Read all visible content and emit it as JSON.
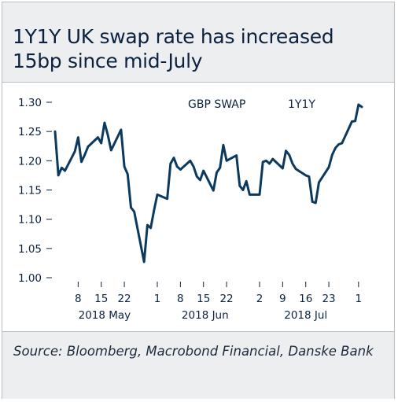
{
  "chart_data": {
    "type": "line",
    "title": "1Y1Y UK swap rate has increased 15bp since mid-July",
    "series": [
      {
        "name": "GBP SWAP",
        "name2": "1Y1Y",
        "color": "#0b3a5e",
        "x": [
          "2018-05-01",
          "2018-05-02",
          "2018-05-03",
          "2018-05-04",
          "2018-05-07",
          "2018-05-08",
          "2018-05-09",
          "2018-05-10",
          "2018-05-11",
          "2018-05-14",
          "2018-05-15",
          "2018-05-16",
          "2018-05-17",
          "2018-05-18",
          "2018-05-21",
          "2018-05-22",
          "2018-05-23",
          "2018-05-24",
          "2018-05-25",
          "2018-05-28",
          "2018-05-29",
          "2018-05-30",
          "2018-05-31",
          "2018-06-01",
          "2018-06-04",
          "2018-06-05",
          "2018-06-06",
          "2018-06-07",
          "2018-06-08",
          "2018-06-11",
          "2018-06-12",
          "2018-06-13",
          "2018-06-14",
          "2018-06-15",
          "2018-06-18",
          "2018-06-19",
          "2018-06-20",
          "2018-06-21",
          "2018-06-22",
          "2018-06-25",
          "2018-06-26",
          "2018-06-27",
          "2018-06-28",
          "2018-06-29",
          "2018-07-02",
          "2018-07-03",
          "2018-07-04",
          "2018-07-05",
          "2018-07-06",
          "2018-07-09",
          "2018-07-10",
          "2018-07-11",
          "2018-07-12",
          "2018-07-13",
          "2018-07-16",
          "2018-07-17",
          "2018-07-18",
          "2018-07-19",
          "2018-07-20",
          "2018-07-23",
          "2018-07-24",
          "2018-07-25",
          "2018-07-26",
          "2018-07-27",
          "2018-07-30",
          "2018-07-31",
          "2018-08-01",
          "2018-08-02"
        ],
        "values": [
          1.25,
          1.175,
          1.188,
          1.183,
          1.216,
          1.24,
          1.198,
          1.21,
          1.224,
          1.24,
          1.23,
          1.265,
          1.244,
          1.218,
          1.253,
          1.19,
          1.177,
          1.12,
          1.113,
          1.027,
          1.09,
          1.085,
          1.115,
          1.142,
          1.135,
          1.195,
          1.205,
          1.19,
          1.185,
          1.2,
          1.19,
          1.173,
          1.167,
          1.183,
          1.149,
          1.18,
          1.188,
          1.227,
          1.2,
          1.209,
          1.157,
          1.15,
          1.165,
          1.142,
          1.142,
          1.198,
          1.2,
          1.195,
          1.203,
          1.187,
          1.217,
          1.21,
          1.195,
          1.186,
          1.175,
          1.173,
          1.13,
          1.128,
          1.163,
          1.189,
          1.21,
          1.222,
          1.228,
          1.23,
          1.267,
          1.268,
          1.296,
          1.292
        ]
      }
    ],
    "ylim": [
      1.0,
      1.3
    ],
    "yticks": [
      "1.30",
      "1.25",
      "1.20",
      "1.15",
      "1.10",
      "1.05",
      "1.00"
    ],
    "xticks": [
      {
        "date": "2018-05-08",
        "label": "8"
      },
      {
        "date": "2018-05-15",
        "label": "15"
      },
      {
        "date": "2018-05-22",
        "label": "22"
      },
      {
        "date": "2018-06-01",
        "label": "1"
      },
      {
        "date": "2018-06-08",
        "label": "8"
      },
      {
        "date": "2018-06-15",
        "label": "15"
      },
      {
        "date": "2018-06-22",
        "label": "22"
      },
      {
        "date": "2018-07-02",
        "label": "2"
      },
      {
        "date": "2018-07-09",
        "label": "9"
      },
      {
        "date": "2018-07-16",
        "label": "16"
      },
      {
        "date": "2018-07-23",
        "label": "23"
      },
      {
        "date": "2018-08-01",
        "label": "1"
      }
    ],
    "month_labels": [
      "2018 May",
      "2018 Jun",
      "2018 Jul"
    ],
    "grid": false,
    "legend": "top-center"
  },
  "source": "Source: Bloomberg, Macrobond Financial, Danske Bank"
}
